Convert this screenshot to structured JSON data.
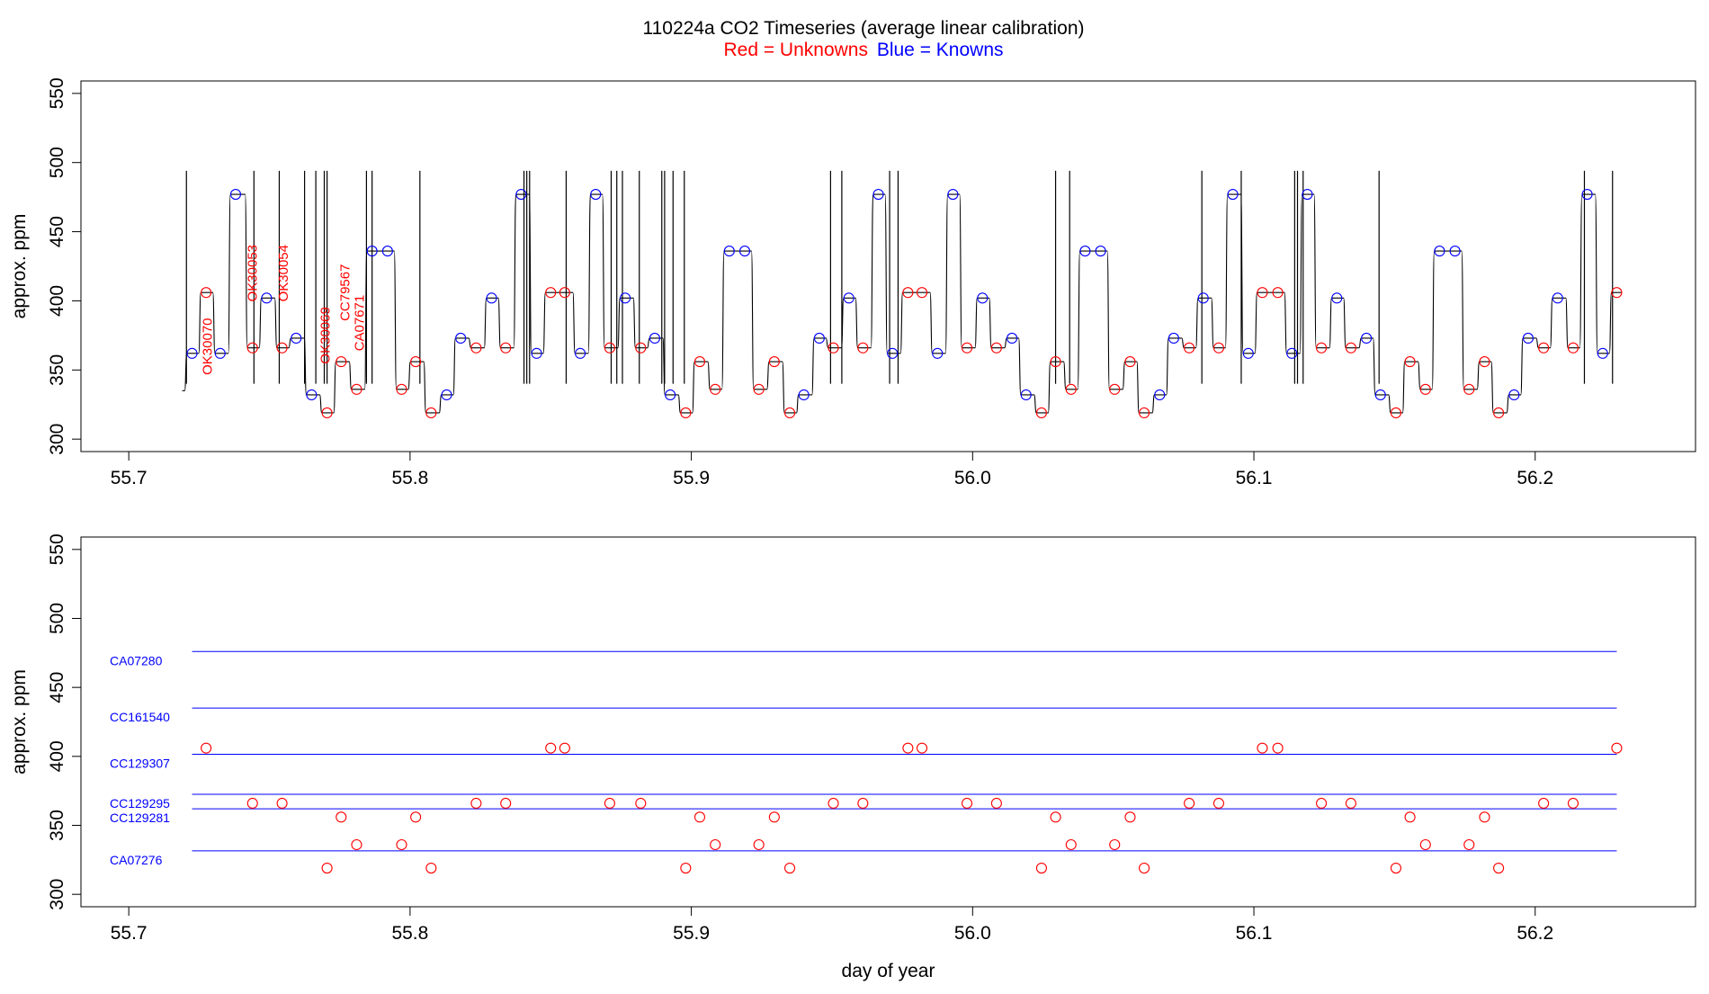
{
  "title": {
    "main": "110224a   CO2 Timeseries (average linear calibration)",
    "red_part": "Red = Unknowns",
    "blue_part": "Blue = Knowns"
  },
  "colors": {
    "unknown": "#ff0000",
    "known": "#0000ff",
    "trace": "#000000",
    "frame": "#000000"
  },
  "chart_data": [
    {
      "type": "line",
      "ylabel": "approx. ppm",
      "xlabel": "",
      "xlim": [
        55.683,
        56.257
      ],
      "ylim": [
        291,
        559
      ],
      "xticks": [
        "55.7",
        "55.8",
        "55.9",
        "56.0",
        "56.1",
        "56.2"
      ],
      "xtick_values": [
        55.7,
        55.8,
        55.9,
        56.0,
        56.1,
        56.2
      ],
      "yticks": [
        "300",
        "350",
        "400",
        "450",
        "500",
        "550"
      ],
      "ytick_values": [
        300,
        350,
        400,
        450,
        500,
        550
      ],
      "sequence": [
        {
          "x": 55.7225,
          "y": 362,
          "k": 1
        },
        {
          "x": 55.7275,
          "y": 406,
          "k": 0
        },
        {
          "x": 55.7325,
          "y": 362,
          "k": 1
        },
        {
          "x": 55.738,
          "y": 477,
          "k": 1
        },
        {
          "x": 55.744,
          "y": 366,
          "k": 0
        },
        {
          "x": 55.749,
          "y": 402,
          "k": 1
        },
        {
          "x": 55.7545,
          "y": 366,
          "k": 0
        },
        {
          "x": 55.7595,
          "y": 373,
          "k": 1
        },
        {
          "x": 55.765,
          "y": 332,
          "k": 1
        },
        {
          "x": 55.7705,
          "y": 319,
          "k": 0
        },
        {
          "x": 55.7755,
          "y": 356,
          "k": 0
        },
        {
          "x": 55.781,
          "y": 336,
          "k": 0
        },
        {
          "x": 55.7865,
          "y": 436,
          "k": 1
        },
        {
          "x": 55.792,
          "y": 436,
          "k": 1
        },
        {
          "x": 55.797,
          "y": 336,
          "k": 0
        },
        {
          "x": 55.802,
          "y": 356,
          "k": 0
        },
        {
          "x": 55.8075,
          "y": 319,
          "k": 0
        },
        {
          "x": 55.813,
          "y": 332,
          "k": 1
        },
        {
          "x": 55.818,
          "y": 373,
          "k": 1
        },
        {
          "x": 55.8235,
          "y": 366,
          "k": 0
        },
        {
          "x": 55.829,
          "y": 402,
          "k": 1
        },
        {
          "x": 55.834,
          "y": 366,
          "k": 0
        },
        {
          "x": 55.8395,
          "y": 477,
          "k": 1
        },
        {
          "x": 55.845,
          "y": 362,
          "k": 1
        },
        {
          "x": 55.85,
          "y": 406,
          "k": 0
        },
        {
          "x": 55.855,
          "y": 406,
          "k": 0
        },
        {
          "x": 55.8605,
          "y": 362,
          "k": 1
        },
        {
          "x": 55.866,
          "y": 477,
          "k": 1
        },
        {
          "x": 55.871,
          "y": 366,
          "k": 0
        },
        {
          "x": 55.8765,
          "y": 402,
          "k": 1
        },
        {
          "x": 55.882,
          "y": 366,
          "k": 0
        },
        {
          "x": 55.887,
          "y": 373,
          "k": 1
        },
        {
          "x": 55.8925,
          "y": 332,
          "k": 1
        },
        {
          "x": 55.898,
          "y": 319,
          "k": 0
        },
        {
          "x": 55.903,
          "y": 356,
          "k": 0
        },
        {
          "x": 55.9085,
          "y": 336,
          "k": 0
        },
        {
          "x": 55.9135,
          "y": 436,
          "k": 1
        },
        {
          "x": 55.919,
          "y": 436,
          "k": 1
        },
        {
          "x": 55.924,
          "y": 336,
          "k": 0
        },
        {
          "x": 55.9295,
          "y": 356,
          "k": 0
        },
        {
          "x": 55.935,
          "y": 319,
          "k": 0
        },
        {
          "x": 55.94,
          "y": 332,
          "k": 1
        },
        {
          "x": 55.9455,
          "y": 373,
          "k": 1
        },
        {
          "x": 55.9505,
          "y": 366,
          "k": 0
        },
        {
          "x": 55.956,
          "y": 402,
          "k": 1
        },
        {
          "x": 55.961,
          "y": 366,
          "k": 0
        },
        {
          "x": 55.9665,
          "y": 477,
          "k": 1
        },
        {
          "x": 55.9715,
          "y": 362,
          "k": 1
        },
        {
          "x": 55.977,
          "y": 406,
          "k": 0
        },
        {
          "x": 55.982,
          "y": 406,
          "k": 0
        },
        {
          "x": 55.9875,
          "y": 362,
          "k": 1
        },
        {
          "x": 55.993,
          "y": 477,
          "k": 1
        },
        {
          "x": 55.998,
          "y": 366,
          "k": 0
        },
        {
          "x": 56.0035,
          "y": 402,
          "k": 1
        },
        {
          "x": 56.0085,
          "y": 366,
          "k": 0
        },
        {
          "x": 56.014,
          "y": 373,
          "k": 1
        },
        {
          "x": 56.019,
          "y": 332,
          "k": 1
        },
        {
          "x": 56.0245,
          "y": 319,
          "k": 0
        },
        {
          "x": 56.0295,
          "y": 356,
          "k": 0
        },
        {
          "x": 56.035,
          "y": 336,
          "k": 0
        },
        {
          "x": 56.04,
          "y": 436,
          "k": 1
        },
        {
          "x": 56.0455,
          "y": 436,
          "k": 1
        },
        {
          "x": 56.0505,
          "y": 336,
          "k": 0
        },
        {
          "x": 56.056,
          "y": 356,
          "k": 0
        },
        {
          "x": 56.061,
          "y": 319,
          "k": 0
        },
        {
          "x": 56.0665,
          "y": 332,
          "k": 1
        },
        {
          "x": 56.0715,
          "y": 373,
          "k": 1
        },
        {
          "x": 56.077,
          "y": 366,
          "k": 0
        },
        {
          "x": 56.082,
          "y": 402,
          "k": 1
        },
        {
          "x": 56.0875,
          "y": 366,
          "k": 0
        },
        {
          "x": 56.0925,
          "y": 477,
          "k": 1
        },
        {
          "x": 56.098,
          "y": 362,
          "k": 1
        },
        {
          "x": 56.103,
          "y": 406,
          "k": 0
        },
        {
          "x": 56.1085,
          "y": 406,
          "k": 0
        },
        {
          "x": 56.1135,
          "y": 362,
          "k": 1
        },
        {
          "x": 56.119,
          "y": 477,
          "k": 1
        },
        {
          "x": 56.124,
          "y": 366,
          "k": 0
        },
        {
          "x": 56.1295,
          "y": 402,
          "k": 1
        },
        {
          "x": 56.1345,
          "y": 366,
          "k": 0
        },
        {
          "x": 56.14,
          "y": 373,
          "k": 1
        },
        {
          "x": 56.145,
          "y": 332,
          "k": 1
        },
        {
          "x": 56.1505,
          "y": 319,
          "k": 0
        },
        {
          "x": 56.1555,
          "y": 356,
          "k": 0
        },
        {
          "x": 56.161,
          "y": 336,
          "k": 0
        },
        {
          "x": 56.166,
          "y": 436,
          "k": 1
        },
        {
          "x": 56.1715,
          "y": 436,
          "k": 1
        },
        {
          "x": 56.1765,
          "y": 336,
          "k": 0
        },
        {
          "x": 56.182,
          "y": 356,
          "k": 0
        },
        {
          "x": 56.187,
          "y": 319,
          "k": 0
        },
        {
          "x": 56.1925,
          "y": 332,
          "k": 1
        },
        {
          "x": 56.1975,
          "y": 373,
          "k": 1
        },
        {
          "x": 56.203,
          "y": 366,
          "k": 0
        },
        {
          "x": 56.208,
          "y": 402,
          "k": 1
        },
        {
          "x": 56.2135,
          "y": 366,
          "k": 0
        },
        {
          "x": 56.2185,
          "y": 477,
          "k": 1
        },
        {
          "x": 56.224,
          "y": 362,
          "k": 1
        },
        {
          "x": 56.229,
          "y": 406,
          "k": 0
        }
      ],
      "trace_start": {
        "x": 55.719,
        "y": 335
      },
      "spikes": [
        55.7205,
        55.7445,
        55.7535,
        55.7625,
        55.7665,
        55.7695,
        55.7705,
        55.7845,
        55.7865,
        55.8035,
        55.8405,
        55.8415,
        55.8425,
        55.8555,
        55.8715,
        55.8735,
        55.8755,
        55.8815,
        55.8895,
        55.8905,
        55.8935,
        55.8975,
        55.9495,
        55.9535,
        55.9705,
        55.9735,
        56.0295,
        56.0345,
        56.0815,
        56.0955,
        56.1145,
        56.1155,
        56.1175,
        56.1445,
        56.2175,
        56.2275
      ],
      "spike_top": 494,
      "annotations": [
        {
          "text": "OK30070",
          "x": 55.7295,
          "y": 367
        },
        {
          "text": "OK30053",
          "x": 55.7455,
          "y": 420
        },
        {
          "text": "OK30054",
          "x": 55.7565,
          "y": 420
        },
        {
          "text": "OK30069",
          "x": 55.7715,
          "y": 375
        },
        {
          "text": "CC79567",
          "x": 55.7785,
          "y": 406
        },
        {
          "text": "CA07671",
          "x": 55.7835,
          "y": 384
        }
      ]
    },
    {
      "type": "scatter",
      "ylabel": "approx. ppm",
      "xlabel": "day of year",
      "xlim": [
        55.683,
        56.257
      ],
      "ylim": [
        291,
        559
      ],
      "xticks": [
        "55.7",
        "55.8",
        "55.9",
        "56.0",
        "56.1",
        "56.2"
      ],
      "xtick_values": [
        55.7,
        55.8,
        55.9,
        56.0,
        56.1,
        56.2
      ],
      "yticks": [
        "300",
        "350",
        "400",
        "450",
        "500",
        "550"
      ],
      "ytick_values": [
        300,
        350,
        400,
        450,
        500,
        550
      ],
      "reference_lines": [
        {
          "name": "CA07280",
          "value": 476
        },
        {
          "name": "CC161540",
          "value": 435
        },
        {
          "name": "CC129307",
          "value": 401.5
        },
        {
          "name": "CC129295",
          "value": 372.5
        },
        {
          "name": "CC129281",
          "value": 362
        },
        {
          "name": "CA07276",
          "value": 331.5
        }
      ],
      "line_span": [
        55.7225,
        56.229
      ]
    }
  ]
}
